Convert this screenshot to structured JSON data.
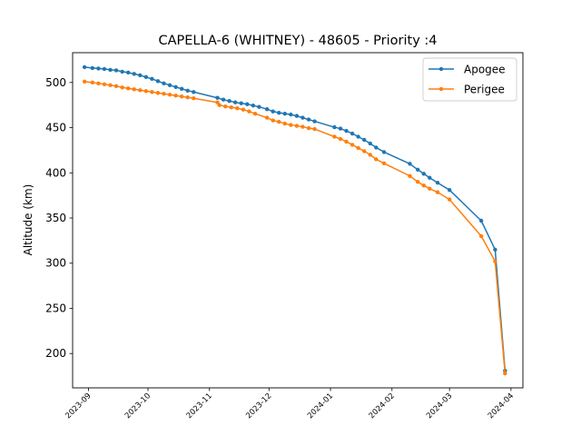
{
  "chart_data": {
    "type": "line",
    "title": "CAPELLA-6 (WHITNEY) - 48605 - Priority :4",
    "xlabel": "",
    "ylabel": "Altitude (km)",
    "xlim": [
      "2023-08-24",
      "2024-04-07"
    ],
    "ylim": [
      162,
      533
    ],
    "x_ticks": [
      "2023-09",
      "2023-10",
      "2023-11",
      "2023-12",
      "2024-01",
      "2024-02",
      "2024-03",
      "2024-04"
    ],
    "y_ticks": [
      200,
      250,
      300,
      350,
      400,
      450,
      500
    ],
    "grid": false,
    "legend_position": "top-right",
    "series": [
      {
        "name": "Apogee",
        "color": "#1f77b4",
        "points": [
          [
            "2023-08-30",
            517
          ],
          [
            "2023-09-03",
            516
          ],
          [
            "2023-09-06",
            515.5
          ],
          [
            "2023-09-09",
            515
          ],
          [
            "2023-09-12",
            514
          ],
          [
            "2023-09-15",
            513.5
          ],
          [
            "2023-09-18",
            512
          ],
          [
            "2023-09-21",
            511
          ],
          [
            "2023-09-24",
            509.5
          ],
          [
            "2023-09-27",
            508
          ],
          [
            "2023-09-30",
            506
          ],
          [
            "2023-10-03",
            504
          ],
          [
            "2023-10-06",
            501.5
          ],
          [
            "2023-10-09",
            499
          ],
          [
            "2023-10-12",
            497
          ],
          [
            "2023-10-15",
            495
          ],
          [
            "2023-10-18",
            493
          ],
          [
            "2023-10-21",
            491
          ],
          [
            "2023-10-24",
            489.5
          ],
          [
            "2023-11-05",
            483
          ],
          [
            "2023-11-08",
            481
          ],
          [
            "2023-11-11",
            479.5
          ],
          [
            "2023-11-14",
            478
          ],
          [
            "2023-11-17",
            477
          ],
          [
            "2023-11-20",
            476
          ],
          [
            "2023-11-23",
            474.5
          ],
          [
            "2023-11-26",
            473
          ],
          [
            "2023-11-30",
            470.5
          ],
          [
            "2023-12-03",
            468
          ],
          [
            "2023-12-06",
            466.5
          ],
          [
            "2023-12-09",
            465.5
          ],
          [
            "2023-12-12",
            464.5
          ],
          [
            "2023-12-15",
            463
          ],
          [
            "2023-12-18",
            461
          ],
          [
            "2023-12-21",
            459
          ],
          [
            "2023-12-24",
            457
          ],
          [
            "2024-01-03",
            450.5
          ],
          [
            "2024-01-06",
            449
          ],
          [
            "2024-01-09",
            446.5
          ],
          [
            "2024-01-12",
            443.5
          ],
          [
            "2024-01-15",
            440
          ],
          [
            "2024-01-18",
            436.5
          ],
          [
            "2024-01-21",
            432.5
          ],
          [
            "2024-01-24",
            428
          ],
          [
            "2024-01-28",
            423
          ],
          [
            "2024-02-10",
            410
          ],
          [
            "2024-02-14",
            403.5
          ],
          [
            "2024-02-17",
            399
          ],
          [
            "2024-02-20",
            394.5
          ],
          [
            "2024-02-24",
            389
          ],
          [
            "2024-03-01",
            381
          ],
          [
            "2024-03-17",
            347
          ],
          [
            "2024-03-24",
            315
          ],
          [
            "2024-03-29",
            181
          ]
        ]
      },
      {
        "name": "Perigee",
        "color": "#ff7f0e",
        "points": [
          [
            "2023-08-30",
            501
          ],
          [
            "2023-09-03",
            500
          ],
          [
            "2023-09-06",
            499
          ],
          [
            "2023-09-09",
            498
          ],
          [
            "2023-09-12",
            497
          ],
          [
            "2023-09-15",
            496
          ],
          [
            "2023-09-18",
            494.5
          ],
          [
            "2023-09-21",
            493.5
          ],
          [
            "2023-09-24",
            492.5
          ],
          [
            "2023-09-27",
            491.5
          ],
          [
            "2023-09-30",
            490.5
          ],
          [
            "2023-10-03",
            489.5
          ],
          [
            "2023-10-06",
            488.5
          ],
          [
            "2023-10-09",
            487.5
          ],
          [
            "2023-10-12",
            486.5
          ],
          [
            "2023-10-15",
            485.5
          ],
          [
            "2023-10-18",
            484.5
          ],
          [
            "2023-10-21",
            483.5
          ],
          [
            "2023-10-24",
            482.5
          ],
          [
            "2023-11-05",
            478
          ],
          [
            "2023-11-06",
            475
          ],
          [
            "2023-11-09",
            473.5
          ],
          [
            "2023-11-12",
            472.5
          ],
          [
            "2023-11-15",
            471.5
          ],
          [
            "2023-11-18",
            470
          ],
          [
            "2023-11-21",
            468
          ],
          [
            "2023-11-24",
            465.5
          ],
          [
            "2023-11-30",
            461
          ],
          [
            "2023-12-03",
            458
          ],
          [
            "2023-12-06",
            456.5
          ],
          [
            "2023-12-09",
            454.5
          ],
          [
            "2023-12-12",
            453
          ],
          [
            "2023-12-15",
            452
          ],
          [
            "2023-12-18",
            451
          ],
          [
            "2023-12-21",
            449.5
          ],
          [
            "2023-12-24",
            448.5
          ],
          [
            "2024-01-03",
            440
          ],
          [
            "2024-01-06",
            437.5
          ],
          [
            "2024-01-09",
            434.5
          ],
          [
            "2024-01-12",
            431
          ],
          [
            "2024-01-15",
            427.5
          ],
          [
            "2024-01-18",
            424
          ],
          [
            "2024-01-21",
            420
          ],
          [
            "2024-01-24",
            415
          ],
          [
            "2024-01-28",
            410.5
          ],
          [
            "2024-02-10",
            396.5
          ],
          [
            "2024-02-14",
            390
          ],
          [
            "2024-02-17",
            386
          ],
          [
            "2024-02-20",
            382.5
          ],
          [
            "2024-02-24",
            378.5
          ],
          [
            "2024-03-01",
            370.5
          ],
          [
            "2024-03-17",
            330
          ],
          [
            "2024-03-24",
            302
          ],
          [
            "2024-03-29",
            178
          ]
        ]
      }
    ]
  }
}
